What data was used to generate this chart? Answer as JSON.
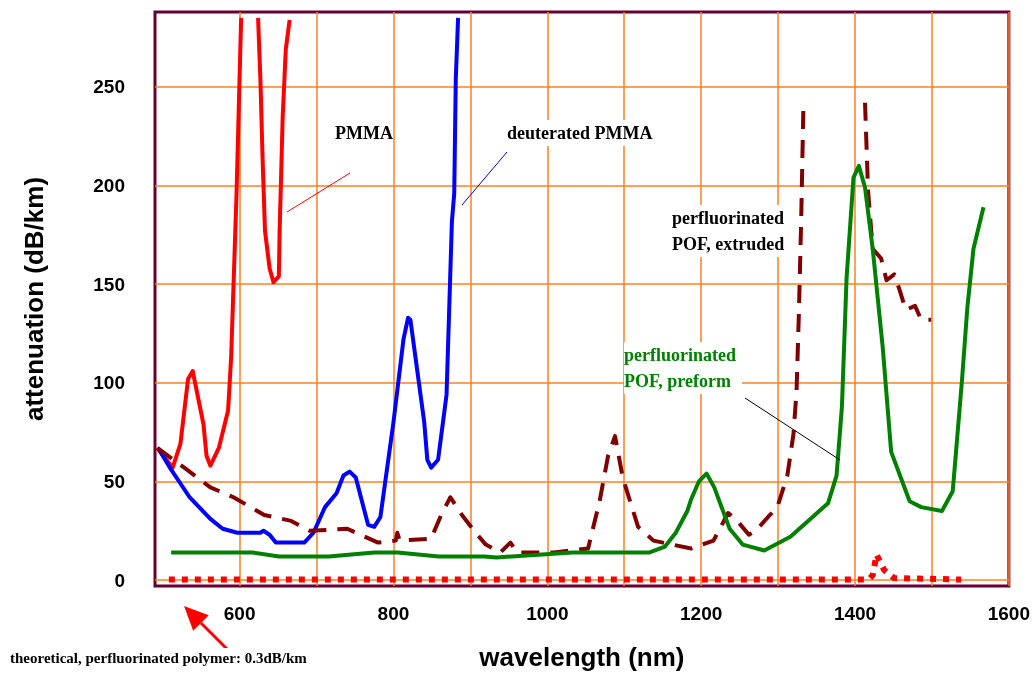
{
  "chart_data": {
    "type": "line",
    "xlabel": "wavelength (nm)",
    "ylabel": "attenuation (dB/km)",
    "xlim": [
      490,
      1600
    ],
    "ylim": [
      -3,
      288
    ],
    "xticks": [
      600,
      {
        "value": 700,
        "label": null
      },
      800,
      {
        "value": 900,
        "label": null
      },
      1000,
      {
        "value": 1100,
        "label": null
      },
      1200,
      {
        "value": 1300,
        "label": null
      },
      1400,
      {
        "value": 1500,
        "label": null
      },
      1600
    ],
    "yticks": [
      0,
      50,
      100,
      150,
      200,
      250
    ],
    "grid": true,
    "legend": false,
    "marker": "none",
    "annotations": [
      "theoretical, perfluorinated polymer: 0.3dB/km"
    ],
    "series": [
      {
        "name": "PMMA",
        "color": "#ff0000",
        "line_style": "solid",
        "x": [
          493,
          513,
          523,
          533,
          539,
          553,
          557,
          562,
          573,
          585,
          589,
          596,
          602,
          613,
          624,
          627,
          630,
          633,
          639,
          644,
          651,
          652,
          656,
          660,
          665
        ],
        "values": [
          67,
          57,
          69,
          102,
          106,
          79,
          63,
          58,
          67,
          86,
          113,
          196,
          285,
          null,
          285,
          254,
          212,
          177,
          158,
          151,
          154,
          177,
          235,
          269,
          284
        ]
      },
      {
        "name": "deuterated PMMA",
        "color": "#0000ff",
        "line_style": "solid",
        "x": [
          494,
          511,
          535,
          562,
          578,
          597,
          627,
          631,
          639,
          647,
          667,
          684,
          696,
          711,
          726,
          735,
          743,
          751,
          767,
          775,
          783,
          800,
          813,
          819,
          822,
          840,
          844,
          849,
          858,
          869,
          876,
          879,
          881,
          884
        ],
        "values": [
          67,
          56,
          42,
          31,
          26,
          24,
          24,
          25,
          23,
          19,
          19,
          19,
          24,
          37,
          44,
          53,
          55,
          52,
          28,
          27,
          32,
          80,
          122,
          133,
          132,
          80,
          61,
          57,
          61,
          94,
          182,
          196,
          254,
          285
        ]
      },
      {
        "name": "perfluorinated POF, extruded",
        "color": "#800000",
        "line_style": "dashed",
        "x": [
          493,
          528,
          562,
          592,
          632,
          667,
          691,
          740,
          780,
          803,
          805,
          808,
          849,
          862,
          874,
          889,
          909,
          920,
          939,
          952,
          961,
          1009,
          1053,
          1068,
          1079,
          1088,
          1098,
          1118,
          1138,
          1187,
          1216,
          1235,
          1247,
          1262,
          1271,
          1287,
          1299,
          1312,
          1320,
          1324,
          1327,
          1330,
          1333,
          1373,
          1413,
          1417,
          1423,
          1434,
          1441,
          1451,
          1458,
          1466,
          1478,
          1486,
          1499
        ],
        "values": [
          67,
          57,
          47,
          42,
          33,
          30,
          25,
          26,
          19,
          20,
          24,
          20,
          21,
          33,
          42,
          33,
          23,
          18,
          14,
          19,
          14,
          14,
          16,
          40,
          63,
          73,
          52,
          27,
          20,
          16,
          20,
          34,
          30,
          23,
          25,
          32,
          37,
          53,
          74,
          96,
          135,
          182,
          242,
          null,
          242,
          197,
          168,
          163,
          152,
          155,
          147,
          137,
          139,
          132,
          132
        ]
      },
      {
        "name": "perfluorinated POF, preform",
        "color": "#008000",
        "line_style": "solid",
        "x": [
          511,
          617,
          651,
          667,
          716,
          775,
          805,
          859,
          918,
          934,
          1033,
          1133,
          1153,
          1167,
          1182,
          1187,
          1197,
          1207,
          1217,
          1237,
          1254,
          1282,
          1316,
          1339,
          1365,
          1376,
          1383,
          1389,
          1398,
          1405,
          1413,
          1423,
          1436,
          1447,
          1471,
          1486,
          1513,
          1527,
          1539,
          1546,
          1554,
          1567
        ],
        "values": [
          14,
          14,
          12,
          12,
          12,
          14,
          14,
          12,
          12,
          11.5,
          14,
          14,
          17,
          24,
          35,
          41,
          50,
          54,
          47,
          26,
          18,
          15,
          22,
          30,
          39,
          53,
          88,
          153,
          204,
          210,
          199,
          168,
          118,
          65,
          40,
          37,
          35,
          45,
          101,
          138,
          168,
          189
        ]
      },
      {
        "color": "#ff0000",
        "line_style": "dotted",
        "x": [
          508,
          1418,
          1423,
          1428,
          1438,
          1451,
          1538
        ],
        "values": [
          0.3,
          0.3,
          2.5,
          13,
          5,
          1,
          0.3
        ]
      }
    ]
  }
}
